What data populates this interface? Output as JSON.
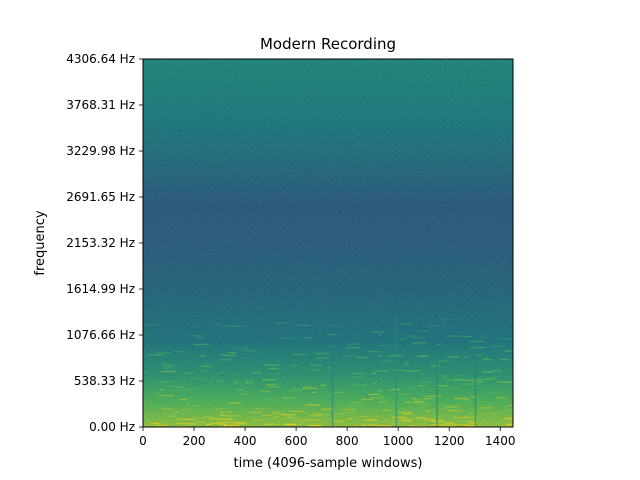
{
  "chart_data": {
    "type": "heatmap",
    "title": "Modern Recording",
    "xlabel": "time (4096-sample windows)",
    "ylabel": "frequency",
    "xlim": [
      0,
      1450
    ],
    "ylim": [
      0,
      4306.64
    ],
    "x_ticks": [
      0,
      200,
      400,
      600,
      800,
      1000,
      1200,
      1400
    ],
    "x_tick_labels": [
      "0",
      "200",
      "400",
      "600",
      "800",
      "1000",
      "1200",
      "1400"
    ],
    "y_ticks": [
      0,
      538.33,
      1076.66,
      1614.99,
      2153.32,
      2691.65,
      3229.98,
      3768.31,
      4306.64
    ],
    "y_tick_labels": [
      "0.00 Hz",
      "538.33 Hz",
      "1076.66 Hz",
      "1614.99 Hz",
      "2153.32 Hz",
      "2691.65 Hz",
      "3229.98 Hz",
      "3768.31 Hz",
      "4306.64 Hz"
    ],
    "colormap": "viridis",
    "grid": false,
    "intensity_profile_by_frequency": [
      {
        "freq_hz": 0,
        "level": 0.85
      },
      {
        "freq_hz": 300,
        "level": 0.72
      },
      {
        "freq_hz": 600,
        "level": 0.58
      },
      {
        "freq_hz": 1000,
        "level": 0.44
      },
      {
        "freq_hz": 1600,
        "level": 0.38
      },
      {
        "freq_hz": 2200,
        "level": 0.34
      },
      {
        "freq_hz": 2600,
        "level": 0.33
      },
      {
        "freq_hz": 3000,
        "level": 0.39
      },
      {
        "freq_hz": 3600,
        "level": 0.47
      },
      {
        "freq_hz": 4306.64,
        "level": 0.52
      }
    ]
  }
}
